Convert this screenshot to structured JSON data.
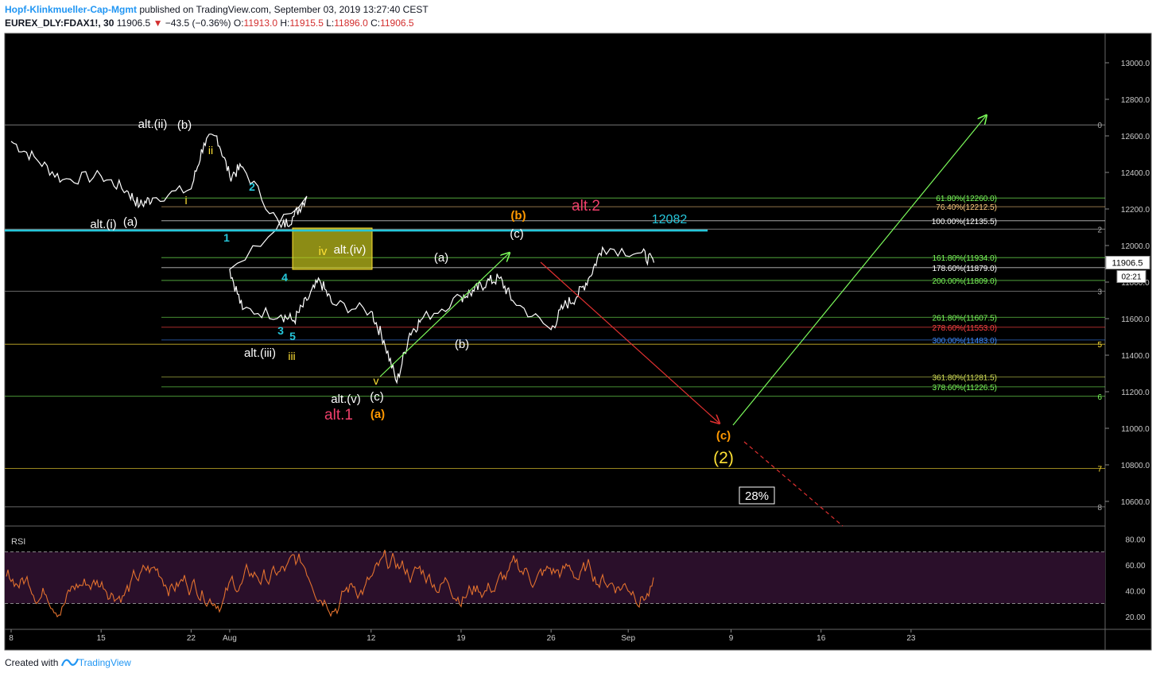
{
  "header": {
    "author": "Hopf-Klinkmueller-Cap-Mgmt",
    "published_text": "published on TradingView.com, September 03, 2019 13:27:40 CEST",
    "symbol": "EUREX_DLY:FDAX1!, 30",
    "last": "11906.5",
    "change": "−43.5 (−0.36%)",
    "o_label": "O:",
    "o_val": "11913.0",
    "h_label": "H:",
    "h_val": "11915.5",
    "l_label": "L:",
    "l_val": "11896.0",
    "c_label": "C:",
    "c_val": "11906.5"
  },
  "footer": {
    "created_with": "Created with",
    "brand": "TradingView"
  },
  "colors": {
    "background": "#000000",
    "price": "#ffffff",
    "rsi": "#e2712e",
    "rsi_band": "#2a0f2a",
    "cyan": "#26c6da",
    "yellow": "#ffe135",
    "orange": "#ff9800",
    "pink": "#ef3f6b",
    "green_arrow": "#7cfc5b",
    "red_arrow": "#e03030"
  },
  "chart_data": {
    "type": "line",
    "title": "",
    "timeframe": "30",
    "x_ticks": [
      "8",
      "15",
      "22",
      "Aug",
      "12",
      "19",
      "26",
      "Sep",
      "9",
      "16",
      "23"
    ],
    "y_ticks": [
      10600,
      10800,
      11000,
      11200,
      11400,
      11600,
      11800,
      12000,
      12200,
      12400,
      12600,
      12800,
      13000
    ],
    "ylim": [
      10480,
      13180
    ],
    "series": [
      {
        "x": [
          "Jul 08",
          "Jul 10",
          "Jul 12",
          "Jul 15",
          "Jul 17",
          "Jul 18",
          "Jul 19",
          "Jul 22",
          "Jul 23",
          "Jul 24",
          "Jul 25",
          "Jul 26",
          "Jul 29",
          "Jul 30",
          "Jul 31",
          "Aug 01",
          "Aug 02",
          "Aug 05",
          "Aug 06",
          "Aug 07",
          "Aug 08",
          "Aug 09",
          "Aug 12",
          "Aug 13",
          "Aug 14",
          "Aug 15",
          "Aug 16",
          "Aug 19",
          "Aug 20",
          "Aug 21",
          "Aug 22",
          "Aug 23",
          "Aug 26",
          "Aug 27",
          "Aug 28",
          "Aug 29",
          "Aug 30",
          "Sep 02",
          "Sep 03"
        ],
        "values": [
          12570,
          12470,
          12360,
          12380,
          12300,
          12220,
          12260,
          12310,
          12560,
          12600,
          12380,
          12430,
          12100,
          12160,
          12270,
          11870,
          11650,
          11620,
          11590,
          11700,
          11810,
          11680,
          11640,
          11480,
          11250,
          11520,
          11600,
          11720,
          11750,
          11800,
          11820,
          11700,
          11540,
          11670,
          11720,
          11830,
          11990,
          11960,
          11906
        ]
      }
    ],
    "last_price": "11906.5",
    "countdown": "02:21",
    "horizontal_levels": [
      {
        "label": "61.80%(12260.0)",
        "value": 12260.0,
        "color": "#7cfc5b"
      },
      {
        "label": "76.40%(12212.5)",
        "value": 12212.5,
        "color": "#ffcc80"
      },
      {
        "label": "100.00%(12135.5)",
        "value": 12135.5,
        "color": "#ffffff"
      },
      {
        "label": "161.80%(11934.0)",
        "value": 11934.0,
        "color": "#7cfc5b"
      },
      {
        "label": "178.60%(11879.0)",
        "value": 11879.0,
        "color": "#ffffff"
      },
      {
        "label": "200.00%(11809.0)",
        "value": 11809.0,
        "color": "#7cfc5b"
      },
      {
        "label": "261.80%(11607.5)",
        "value": 11607.5,
        "color": "#7cfc5b"
      },
      {
        "label": "278.60%(11553.0)",
        "value": 11553.0,
        "color": "#ff4444"
      },
      {
        "label": "300.00%(11483.0)",
        "value": 11483.0,
        "color": "#3d8bff"
      },
      {
        "label": "361.80%(11281.5)",
        "value": 11281.5,
        "color": "#d4e157"
      },
      {
        "label": "378.60%(11226.5)",
        "value": 11226.5,
        "color": "#7cfc5b"
      }
    ],
    "fib_levels_right": [
      {
        "label": "0",
        "value": 12660
      },
      {
        "label": "2",
        "value": 12090
      },
      {
        "label": "3",
        "value": 11750
      },
      {
        "label": "5",
        "value": 11460
      },
      {
        "label": "6",
        "value": 11175
      },
      {
        "label": "7",
        "value": 10780
      },
      {
        "label": "8",
        "value": 10570
      }
    ],
    "cyan_level": {
      "label": "12082",
      "value": 12082
    },
    "rsi": {
      "label": "RSI",
      "y_ticks": [
        "80.00",
        "60.00",
        "40.00",
        "20.00"
      ],
      "ylim": [
        10,
        90
      ],
      "band": [
        30,
        70
      ]
    },
    "annotations": {
      "alt_ii_b": "alt.(ii)",
      "b_white": "(b)",
      "small_ii": "ii",
      "small_i": "i",
      "cyan_2": "2",
      "alt_i_a": "alt.(i)",
      "a_white_left": "(a)",
      "cyan_1": "1",
      "iv": "iv",
      "alt_iv": "alt.(iv)",
      "cyan_4": "4",
      "cyan_3": "3",
      "cyan_5": "5",
      "alt_iii": "alt.(iii)",
      "small_iii": "iii",
      "small_v": "v",
      "alt_v": "alt.(v)",
      "c_white_low": "(c)",
      "alt_1": "alt.1",
      "a_orange": "(a)",
      "a_white_mid": "(a)",
      "b_white_mid": "(b)",
      "b_orange": "(b)",
      "c_white_top": "(c)",
      "alt_2": "alt.2",
      "c_orange": "(c)",
      "wave_2": "(2)",
      "pct_box": "28%"
    }
  }
}
